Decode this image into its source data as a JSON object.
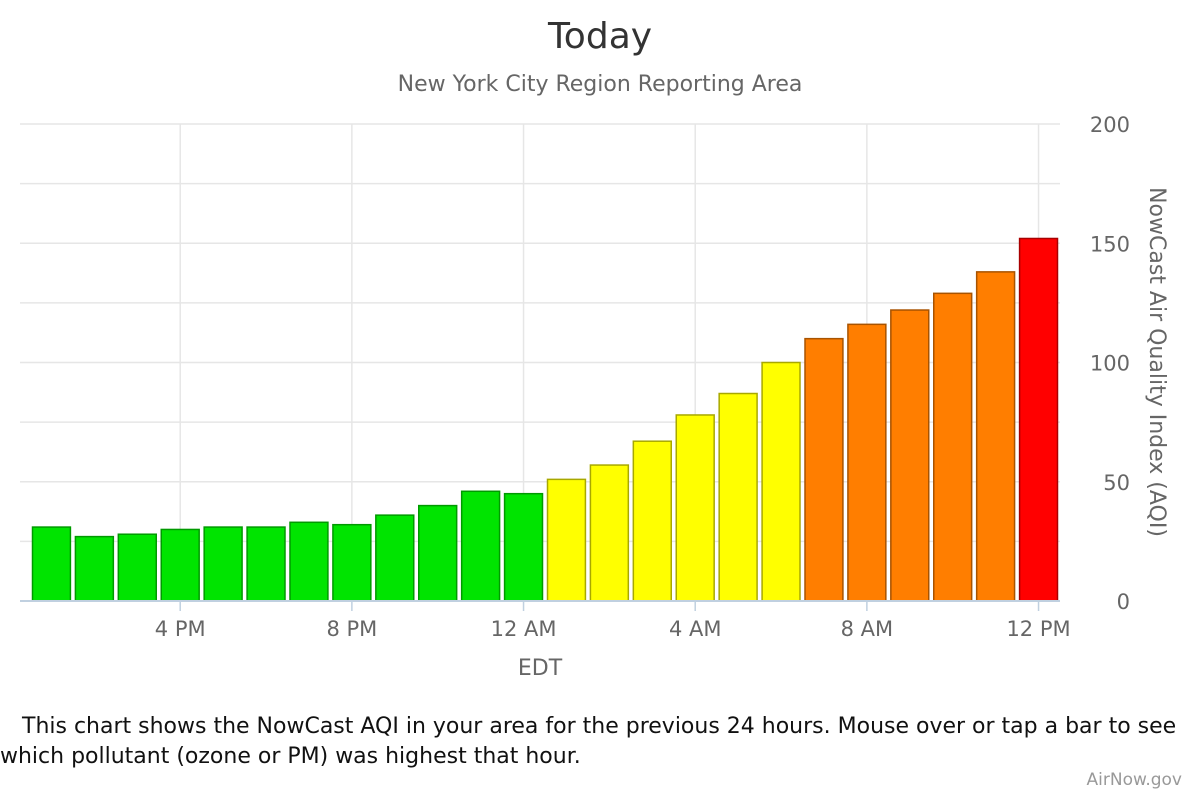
{
  "chart_data": {
    "type": "bar",
    "title": "Today",
    "subtitle": "New York City Region Reporting Area",
    "xlabel": "EDT",
    "ylabel": "NowCast Air Quality Index (AQI)",
    "ylim": [
      0,
      200
    ],
    "y_ticks": [
      0,
      50,
      100,
      150,
      200
    ],
    "x_ticks": [
      {
        "label": "4 PM",
        "hour": 3
      },
      {
        "label": "8 PM",
        "hour": 7
      },
      {
        "label": "12 AM",
        "hour": 11
      },
      {
        "label": "4 AM",
        "hour": 15
      },
      {
        "label": "8 AM",
        "hour": 19
      },
      {
        "label": "12 PM",
        "hour": 23
      }
    ],
    "grid": true,
    "legend": "none",
    "values": [
      31,
      27,
      28,
      30,
      31,
      31,
      33,
      32,
      36,
      40,
      46,
      45,
      51,
      57,
      67,
      78,
      87,
      100,
      110,
      116,
      122,
      129,
      138,
      152
    ],
    "category_colors": {
      "good": {
        "max": 50,
        "fill": "#00E400",
        "stroke": "#009a00"
      },
      "moderate": {
        "max": 100,
        "fill": "#FFFF00",
        "stroke": "#a8a800"
      },
      "usg": {
        "max": 150,
        "fill": "#FF7E00",
        "stroke": "#a85300"
      },
      "unhealthy": {
        "max": 200,
        "fill": "#FF0000",
        "stroke": "#a80000"
      }
    }
  },
  "caption": "This chart shows the NowCast AQI in your area for the previous 24 hours. Mouse over or tap a bar to see which pollutant (ozone or PM) was highest that hour.",
  "credit": "AirNow.gov"
}
